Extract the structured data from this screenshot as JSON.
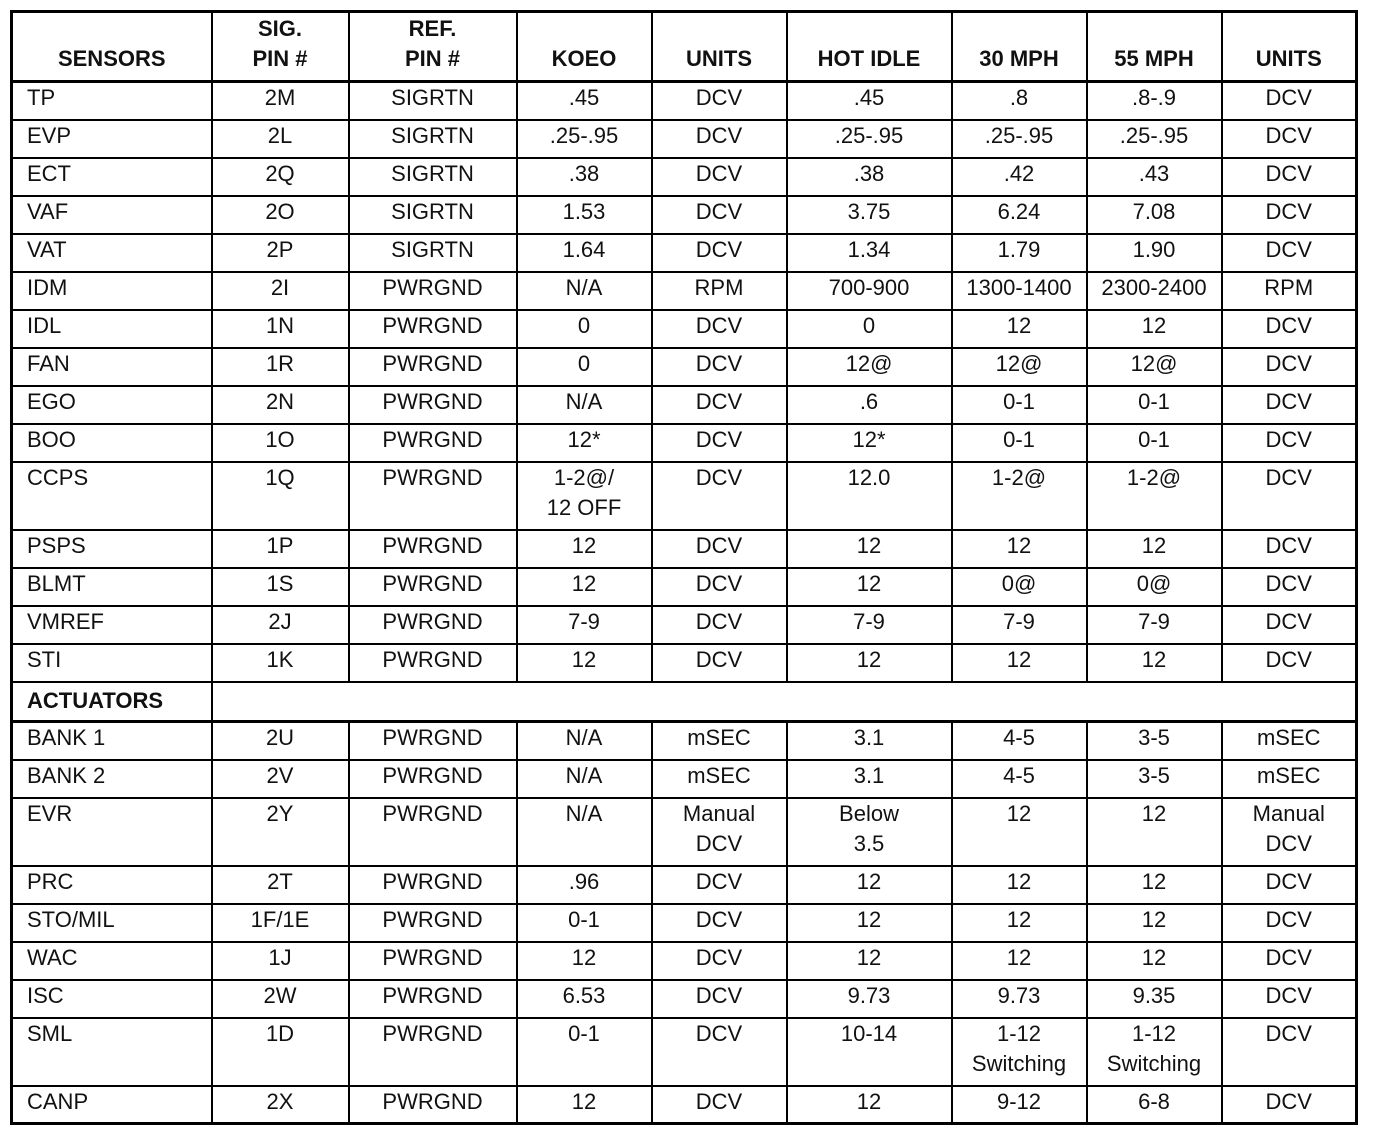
{
  "table": {
    "header": [
      "SENSORS",
      "SIG.\nPIN #",
      "REF.\nPIN #",
      "KOEO",
      "UNITS",
      "HOT IDLE",
      "30 MPH",
      "55 MPH",
      "UNITS"
    ],
    "sensors": [
      [
        "TP",
        "2M",
        "SIGRTN",
        ".45",
        "DCV",
        ".45",
        ".8",
        ".8-.9",
        "DCV"
      ],
      [
        "EVP",
        "2L",
        "SIGRTN",
        ".25-.95",
        "DCV",
        ".25-.95",
        ".25-.95",
        ".25-.95",
        "DCV"
      ],
      [
        "ECT",
        "2Q",
        "SIGRTN",
        ".38",
        "DCV",
        ".38",
        ".42",
        ".43",
        "DCV"
      ],
      [
        "VAF",
        "2O",
        "SIGRTN",
        "1.53",
        "DCV",
        "3.75",
        "6.24",
        "7.08",
        "DCV"
      ],
      [
        "VAT",
        "2P",
        "SIGRTN",
        "1.64",
        "DCV",
        "1.34",
        "1.79",
        "1.90",
        "DCV"
      ],
      [
        "IDM",
        "2I",
        "PWRGND",
        "N/A",
        "RPM",
        "700-900",
        "1300-1400",
        "2300-2400",
        "RPM"
      ],
      [
        "IDL",
        "1N",
        "PWRGND",
        "0",
        "DCV",
        "0",
        "12",
        "12",
        "DCV"
      ],
      [
        "FAN",
        "1R",
        "PWRGND",
        "0",
        "DCV",
        "12@",
        "12@",
        "12@",
        "DCV"
      ],
      [
        "EGO",
        "2N",
        "PWRGND",
        "N/A",
        "DCV",
        ".6",
        "0-1",
        "0-1",
        "DCV"
      ],
      [
        "BOO",
        "1O",
        "PWRGND",
        "12*",
        "DCV",
        "12*",
        "0-1",
        "0-1",
        "DCV"
      ],
      [
        "CCPS",
        "1Q",
        "PWRGND",
        "1-2@/\n12 OFF",
        "DCV",
        "12.0",
        "1-2@",
        "1-2@",
        "DCV"
      ],
      [
        "PSPS",
        "1P",
        "PWRGND",
        "12",
        "DCV",
        "12",
        "12",
        "12",
        "DCV"
      ],
      [
        "BLMT",
        "1S",
        "PWRGND",
        "12",
        "DCV",
        "12",
        "0@",
        "0@",
        "DCV"
      ],
      [
        "VMREF",
        "2J",
        "PWRGND",
        "7-9",
        "DCV",
        "7-9",
        "7-9",
        "7-9",
        "DCV"
      ],
      [
        "STI",
        "1K",
        "PWRGND",
        "12",
        "DCV",
        "12",
        "12",
        "12",
        "DCV"
      ]
    ],
    "section": "ACTUATORS",
    "actuators": [
      [
        "BANK 1",
        "2U",
        "PWRGND",
        "N/A",
        "mSEC",
        "3.1",
        "4-5",
        "3-5",
        "mSEC"
      ],
      [
        "BANK 2",
        "2V",
        "PWRGND",
        "N/A",
        "mSEC",
        "3.1",
        "4-5",
        "3-5",
        "mSEC"
      ],
      [
        "EVR",
        "2Y",
        "PWRGND",
        "N/A",
        "Manual\nDCV",
        "Below\n3.5",
        "12",
        "12",
        "Manual\nDCV"
      ],
      [
        "PRC",
        "2T",
        "PWRGND",
        ".96",
        "DCV",
        "12",
        "12",
        "12",
        "DCV"
      ],
      [
        "STO/MIL",
        "1F/1E",
        "PWRGND",
        "0-1",
        "DCV",
        "12",
        "12",
        "12",
        "DCV"
      ],
      [
        "WAC",
        "1J",
        "PWRGND",
        "12",
        "DCV",
        "12",
        "12",
        "12",
        "DCV"
      ],
      [
        "ISC",
        "2W",
        "PWRGND",
        "6.53",
        "DCV",
        "9.73",
        "9.73",
        "9.35",
        "DCV"
      ],
      [
        "SML",
        "1D",
        "PWRGND",
        "0-1",
        "DCV",
        "10-14",
        "1-12\nSwitching",
        "1-12\nSwitching",
        "DCV"
      ],
      [
        "CANP",
        "2X",
        "PWRGND",
        "12",
        "DCV",
        "12",
        "9-12",
        "6-8",
        "DCV"
      ]
    ]
  }
}
